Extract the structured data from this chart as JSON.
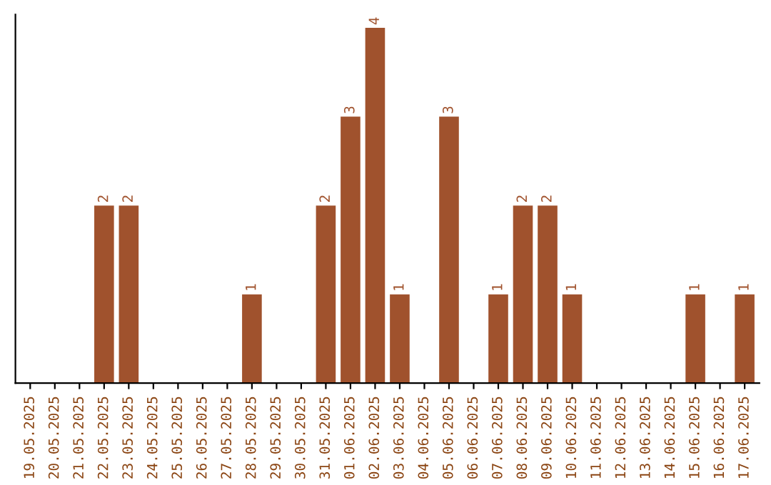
{
  "chart_data": {
    "type": "bar",
    "categories": [
      "19.05.2025",
      "20.05.2025",
      "21.05.2025",
      "22.05.2025",
      "23.05.2025",
      "24.05.2025",
      "25.05.2025",
      "26.05.2025",
      "27.05.2025",
      "28.05.2025",
      "29.05.2025",
      "30.05.2025",
      "31.05.2025",
      "01.06.2025",
      "02.06.2025",
      "03.06.2025",
      "04.06.2025",
      "05.06.2025",
      "06.06.2025",
      "07.06.2025",
      "08.06.2025",
      "09.06.2025",
      "10.06.2025",
      "11.06.2025",
      "12.06.2025",
      "13.06.2025",
      "14.06.2025",
      "15.06.2025",
      "16.06.2025",
      "17.06.2025"
    ],
    "values": [
      0,
      0,
      0,
      2,
      2,
      0,
      0,
      0,
      0,
      1,
      0,
      0,
      2,
      3,
      4,
      1,
      0,
      3,
      0,
      1,
      2,
      2,
      1,
      0,
      0,
      0,
      0,
      1,
      0,
      1
    ],
    "value_labels": [
      null,
      null,
      null,
      "2",
      "2",
      null,
      null,
      null,
      null,
      "1",
      null,
      null,
      "2",
      "3",
      "4",
      "1",
      null,
      "3",
      null,
      "1",
      "2",
      "2",
      "1",
      null,
      null,
      null,
      null,
      "1",
      null,
      "1"
    ],
    "color": "#a0522d",
    "ylim": [
      0,
      4.15
    ],
    "tick_labels": "x",
    "grid": false,
    "legend": false
  }
}
